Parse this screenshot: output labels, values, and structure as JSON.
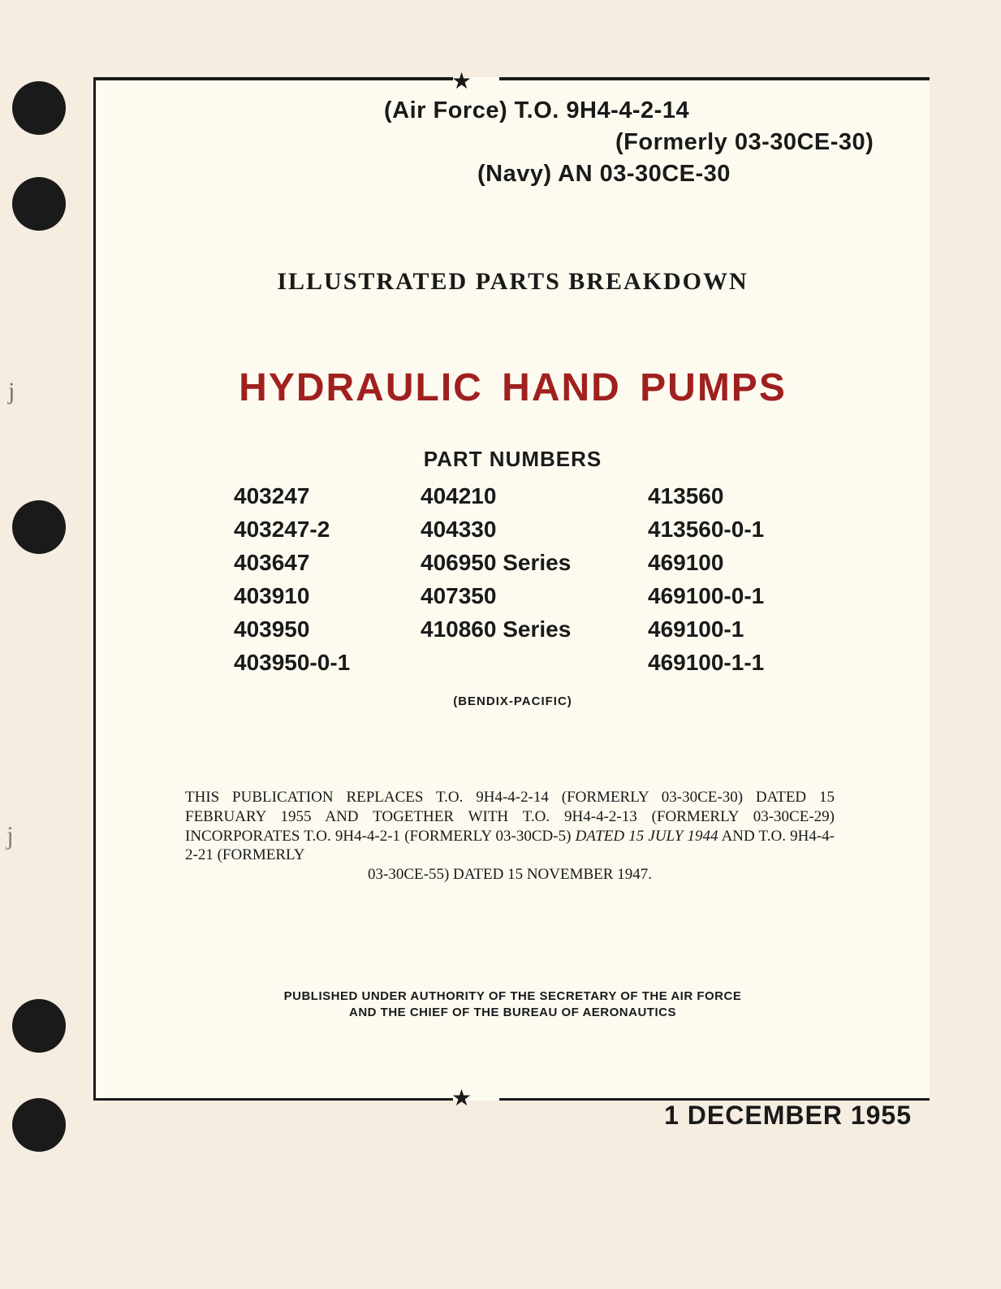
{
  "header": {
    "line1": "(Air Force) T.O. 9H4-4-2-14",
    "line2": "(Formerly 03-30CE-30)",
    "line3": "(Navy) AN 03-30CE-30"
  },
  "section_heading": "ILLUSTRATED PARTS BREAKDOWN",
  "main_title": "HYDRAULIC HAND PUMPS",
  "part_numbers": {
    "label": "PART NUMBERS",
    "col1": [
      "403247",
      "403247-2",
      "403647",
      "403910",
      "403950",
      "403950-0-1"
    ],
    "col2": [
      "404210",
      "404330",
      "406950 Series",
      "407350",
      "410860 Series",
      ""
    ],
    "col3": [
      "413560",
      "413560-0-1",
      "469100",
      "469100-0-1",
      "469100-1",
      "469100-1-1"
    ]
  },
  "manufacturer": "(BENDIX-PACIFIC)",
  "replacement_note": {
    "text_prefix": "THIS PUBLICATION REPLACES T.O. 9H4-4-2-14 (FORMERLY 03-30CE-30) DATED 15 FEBRUARY 1955 AND TOGETHER WITH T.O. 9H4-4-2-13 (FORMERLY 03-30CE-29) INCORPORATES T.O. 9H4-4-2-1 (FORMERLY 03-30CD-5) ",
    "italic": "DATED 15 JULY 1944",
    "text_suffix": " AND T.O. 9H4-4-2-21 (FORMERLY",
    "last_line": "03-30CE-55) DATED 15 NOVEMBER 1947."
  },
  "authority_note_line1": "PUBLISHED UNDER AUTHORITY OF THE SECRETARY OF THE AIR FORCE",
  "authority_note_line2": "AND THE CHIEF OF THE BUREAU OF AERONAUTICS",
  "date": "1 DECEMBER 1955",
  "colors": {
    "page_bg": "#f5ede0",
    "paper_bg": "#fdfaf0",
    "text": "#1a1a1a",
    "title_red": "#a02020"
  }
}
